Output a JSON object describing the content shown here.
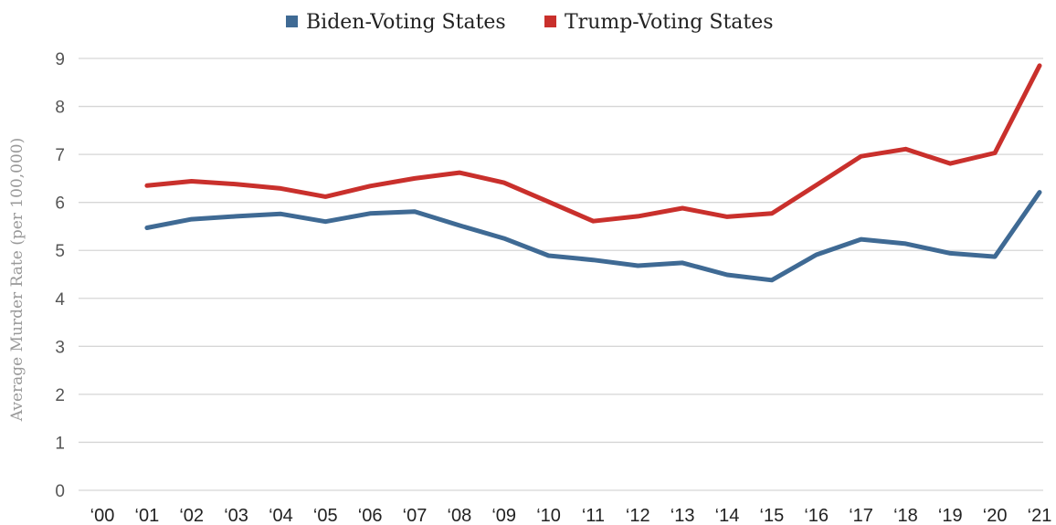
{
  "chart_data": {
    "type": "line",
    "ylabel": "Average Murder Rate (per 100,000)",
    "xlabel": "",
    "ylim": [
      0,
      9
    ],
    "yticks": [
      "0",
      "1",
      "2",
      "3",
      "4",
      "5",
      "6",
      "7",
      "8",
      "9"
    ],
    "categories": [
      "‘00",
      "‘01",
      "‘02",
      "‘03",
      "‘04",
      "‘05",
      "‘06",
      "‘07",
      "‘08",
      "‘09",
      "‘10",
      "‘11",
      "‘12",
      "‘13",
      "‘14",
      "‘15",
      "‘16",
      "‘17",
      "‘18",
      "‘19",
      "‘20",
      "‘21"
    ],
    "grid": true,
    "legend_position": "top-center",
    "series": [
      {
        "name": "Biden-Voting States",
        "color": "#3f6a94",
        "values": [
          5.47,
          5.65,
          5.71,
          5.76,
          5.6,
          5.77,
          5.81,
          5.52,
          5.25,
          4.89,
          4.8,
          4.68,
          4.74,
          4.49,
          4.38,
          4.91,
          5.23,
          5.14,
          4.94,
          4.87,
          6.21,
          null
        ]
      },
      {
        "name": "Trump-Voting States",
        "color": "#c9302c",
        "values": [
          6.35,
          6.44,
          6.38,
          6.29,
          6.12,
          6.34,
          6.5,
          6.62,
          6.41,
          6.01,
          5.61,
          5.71,
          5.88,
          5.7,
          5.77,
          6.36,
          6.96,
          7.11,
          6.81,
          7.03,
          8.85,
          null
        ]
      }
    ]
  }
}
